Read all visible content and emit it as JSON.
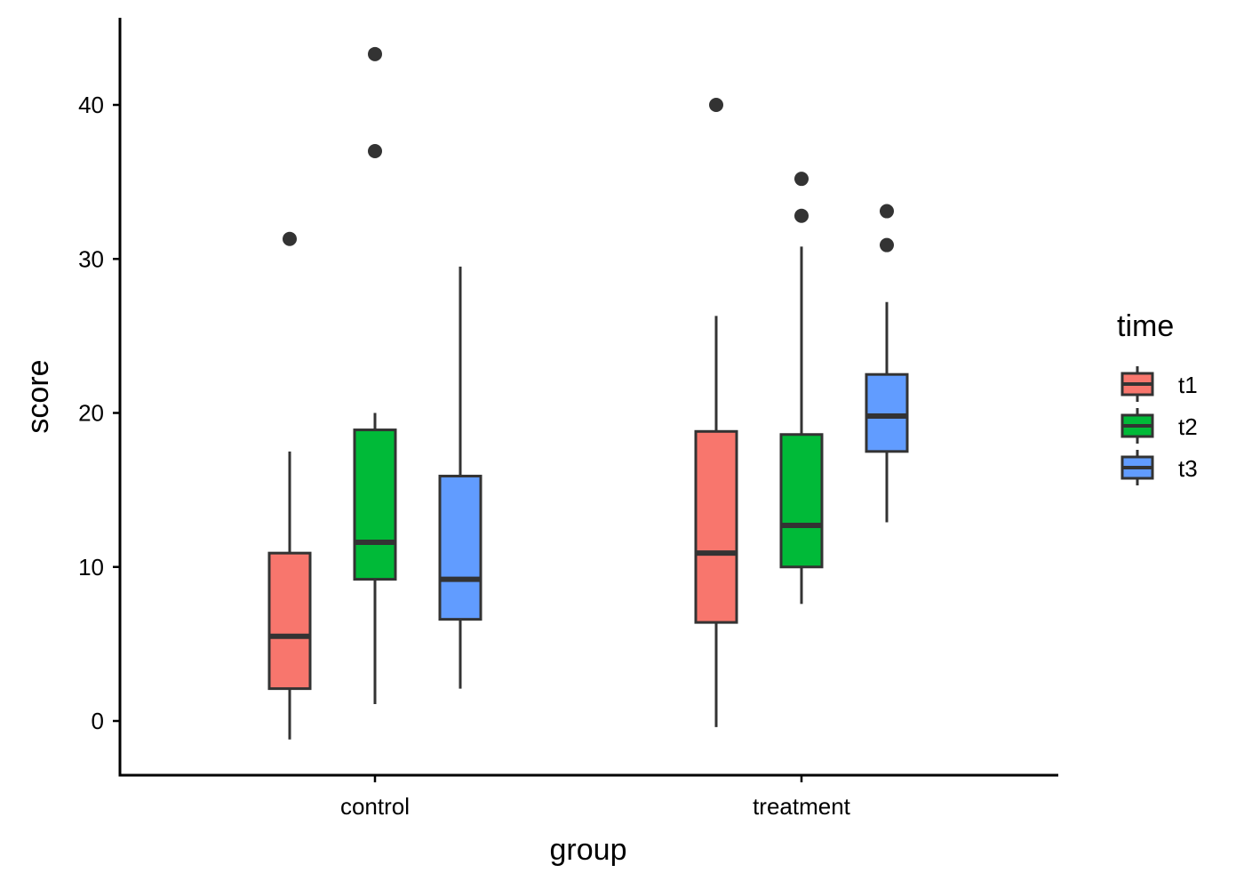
{
  "chart_data": {
    "type": "boxplot",
    "title": "",
    "xlabel": "group",
    "ylabel": "score",
    "ylim": [
      -3.5,
      45.5
    ],
    "yticks": [
      0,
      10,
      20,
      30,
      40
    ],
    "ytick_labels": [
      "0",
      "10",
      "20",
      "30",
      "40"
    ],
    "categories": [
      "control",
      "treatment"
    ],
    "grid": false,
    "legend": {
      "title": "time",
      "position": "right",
      "entries": [
        {
          "label": "t1",
          "color": "#F8766D"
        },
        {
          "label": "t2",
          "color": "#00BA38"
        },
        {
          "label": "t3",
          "color": "#619CFF"
        }
      ]
    },
    "series": [
      {
        "name": "t1",
        "color": "#F8766D",
        "boxes": [
          {
            "group": "control",
            "whisker_low": -1.2,
            "q1": 2.1,
            "median": 5.5,
            "q3": 10.9,
            "whisker_high": 17.5,
            "outliers": [
              31.3
            ]
          },
          {
            "group": "treatment",
            "whisker_low": -0.4,
            "q1": 6.4,
            "median": 10.9,
            "q3": 18.8,
            "whisker_high": 26.3,
            "outliers": [
              40.0
            ]
          }
        ]
      },
      {
        "name": "t2",
        "color": "#00BA38",
        "boxes": [
          {
            "group": "control",
            "whisker_low": 1.1,
            "q1": 9.2,
            "median": 11.6,
            "q3": 18.9,
            "whisker_high": 20.0,
            "outliers": [
              37.0,
              43.3
            ]
          },
          {
            "group": "treatment",
            "whisker_low": 7.6,
            "q1": 10.0,
            "median": 12.7,
            "q3": 18.6,
            "whisker_high": 30.8,
            "outliers": [
              32.8,
              35.2
            ]
          }
        ]
      },
      {
        "name": "t3",
        "color": "#619CFF",
        "boxes": [
          {
            "group": "control",
            "whisker_low": 2.1,
            "q1": 6.6,
            "median": 9.2,
            "q3": 15.9,
            "whisker_high": 29.5,
            "outliers": []
          },
          {
            "group": "treatment",
            "whisker_low": 12.9,
            "q1": 17.5,
            "median": 19.8,
            "q3": 22.5,
            "whisker_high": 27.2,
            "outliers": [
              30.9,
              33.1
            ]
          }
        ]
      }
    ]
  }
}
